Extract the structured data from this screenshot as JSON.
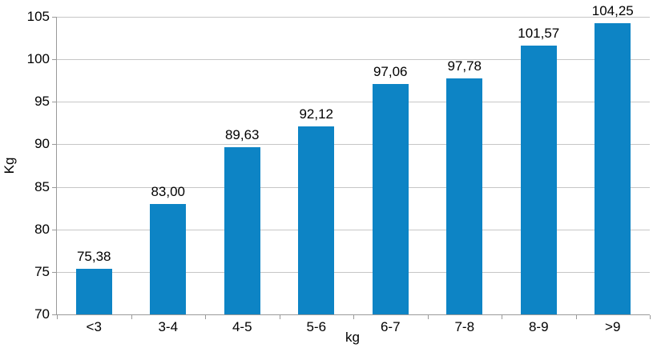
{
  "chart_data": {
    "type": "bar",
    "categories": [
      "<3",
      "3-4",
      "4-5",
      "5-6",
      "6-7",
      "7-8",
      "8-9",
      ">9"
    ],
    "values": [
      75.38,
      83.0,
      89.63,
      92.12,
      97.06,
      97.78,
      101.57,
      104.25
    ],
    "value_labels": [
      "75,38",
      "83,00",
      "89,63",
      "92,12",
      "97,06",
      "97,78",
      "101,57",
      "104,25"
    ],
    "title": "",
    "xlabel": "kg",
    "ylabel": "Kg",
    "ylim": [
      70,
      105
    ],
    "yticks": [
      70,
      75,
      80,
      85,
      90,
      95,
      100,
      105
    ],
    "grid": true,
    "legend": "none",
    "bar_color": "#0d84c5",
    "gridline_color": "#c6c6c6",
    "axis_color": "#9a9a9a",
    "text_color": "#000000",
    "background_color": "#ffffff"
  }
}
